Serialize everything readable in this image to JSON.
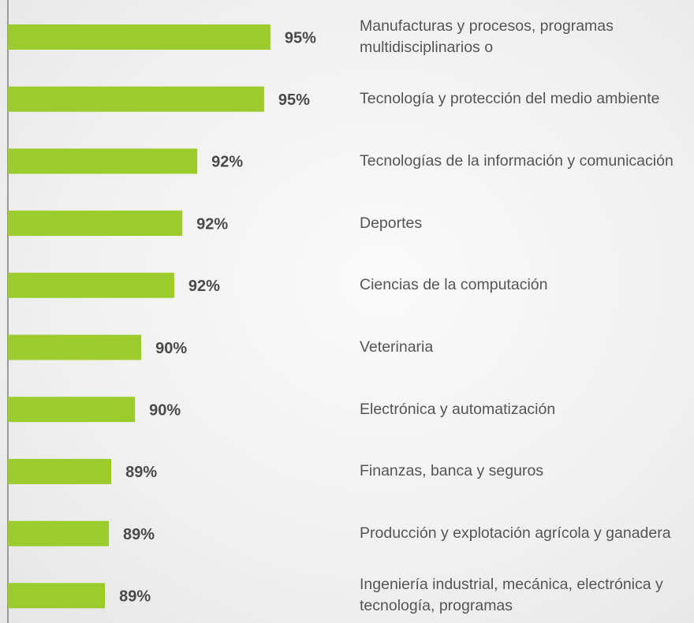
{
  "chart_data": {
    "type": "barh",
    "categories": [
      "Manufacturas y procesos, programas multidisciplinarios o",
      "Tecnología y protección del medio ambiente",
      "Tecnologías de la información y comunicación",
      "Deportes",
      "Ciencias de la computación",
      "Veterinaria",
      "Electrónica y automatización",
      "Finanzas, banca y seguros",
      "Producción y explotación agrícola y ganadera",
      "Ingeniería industrial, mecánica, electrónica y tecnología, programas"
    ],
    "values": [
      94.76,
      94.55,
      92.32,
      91.82,
      91.55,
      90.45,
      90.24,
      89.45,
      89.37,
      89.24
    ],
    "value_labels": [
      "95%",
      "95%",
      "92%",
      "92%",
      "92%",
      "90%",
      "90%",
      "89%",
      "89%",
      "89%"
    ],
    "color": "#9bcb2c",
    "xlim": [
      86,
      96
    ]
  }
}
